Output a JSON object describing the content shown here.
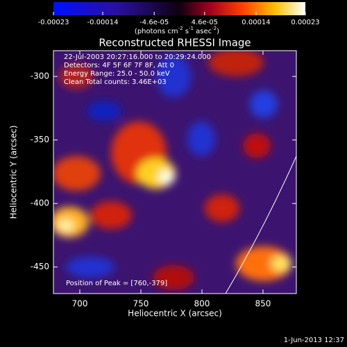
{
  "chart_data": {
    "type": "image",
    "title": "Reconstructed RHESSI Image",
    "xlabel": "Heliocentric X (arcsec)",
    "ylabel": "Heliocentric Y (arcsec)",
    "xlim": [
      678.4,
      877.3
    ],
    "xticks": [
      700,
      750,
      800,
      850
    ],
    "ylim": [
      -470.9,
      -279.7
    ],
    "yticks": [
      -450,
      -400,
      -350,
      -300
    ],
    "annotations": [
      "22-Jul-2003 20:27:16.000 to 20:29:24.000",
      "Detectors: 4F 5F 6F 7F 8F, Att 0",
      "Energy Range: 25.0 - 50.0 keV",
      "Clean    Total counts: 3.46E+03"
    ],
    "peak_label": "Position of Peak = [760,-379]",
    "colorbar": {
      "lim": [
        -0.00023,
        0.00023
      ],
      "ticks": [
        -0.00023,
        -0.00014,
        {
          "value": -4.6e-05,
          "label": "-4.6e-05"
        },
        {
          "value": 4.6e-05,
          "label": "4.6e-05"
        },
        0.00014,
        0.00023
      ],
      "unit_parts": [
        "(photons cm",
        "-2",
        " s",
        "-1",
        " asec",
        "-2",
        ")"
      ]
    },
    "footer": "1-Jun-2013 12:37"
  }
}
